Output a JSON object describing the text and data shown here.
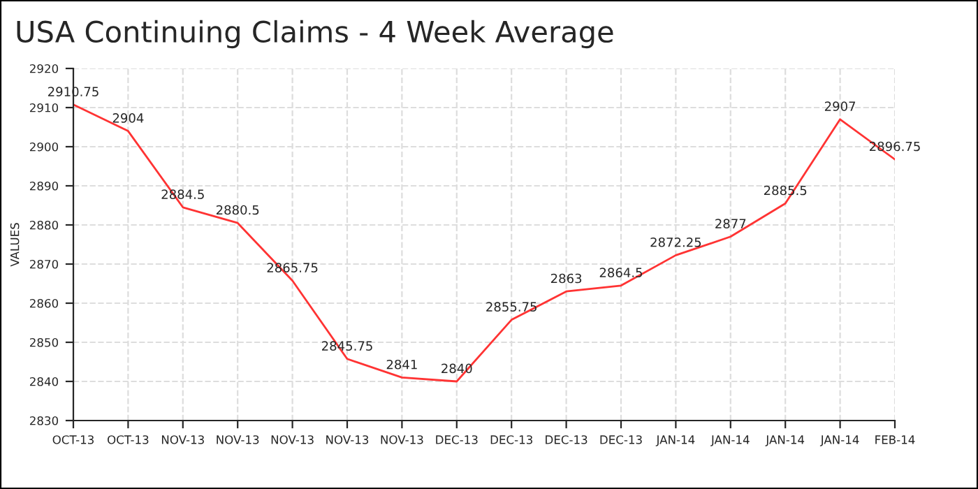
{
  "chart_data": {
    "type": "line",
    "title": "USA Continuing Claims - 4 Week Average",
    "ylabel": "VALUES",
    "categories": [
      "OCT-13",
      "OCT-13",
      "NOV-13",
      "NOV-13",
      "NOV-13",
      "NOV-13",
      "NOV-13",
      "DEC-13",
      "DEC-13",
      "DEC-13",
      "DEC-13",
      "JAN-14",
      "JAN-14",
      "JAN-14",
      "JAN-14",
      "FEB-14"
    ],
    "series": [
      {
        "color": "#ff3333",
        "values": [
          2910.75,
          2904,
          2884.5,
          2880.5,
          2865.75,
          2845.75,
          2841,
          2840,
          2855.75,
          2863,
          2864.5,
          2872.25,
          2877,
          2885.5,
          2907,
          2896.75
        ]
      }
    ],
    "ylim": [
      2830,
      2920
    ],
    "yticks": [
      2830,
      2840,
      2850,
      2860,
      2870,
      2880,
      2890,
      2900,
      2910,
      2920
    ],
    "grid": true,
    "data_labels": true,
    "marker": "none",
    "line_style": "solid"
  }
}
